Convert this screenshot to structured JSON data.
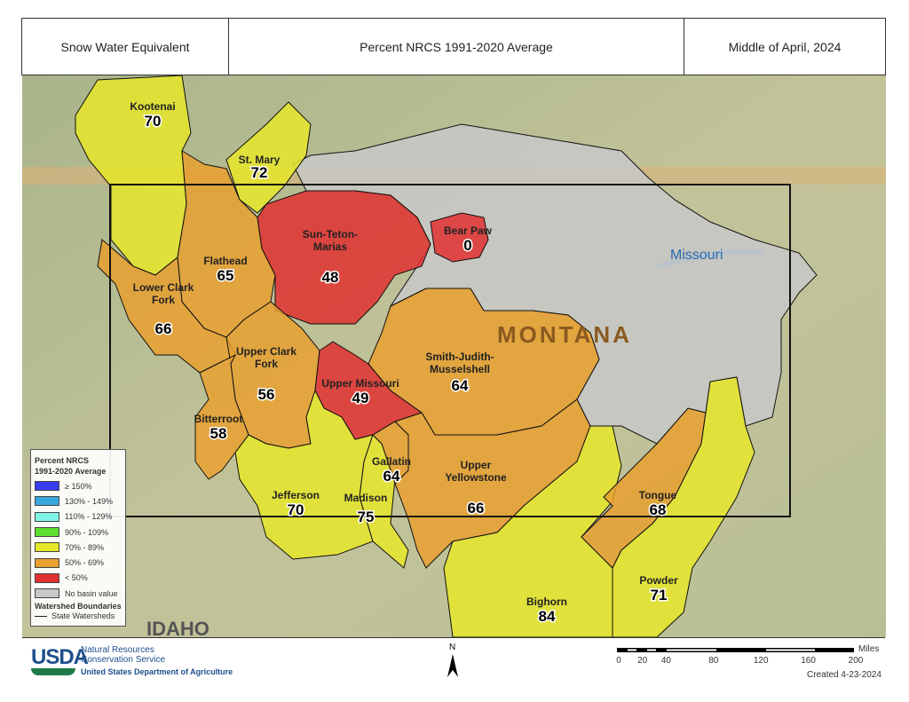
{
  "header": {
    "left": "Snow Water Equivalent",
    "center": "Percent NRCS 1991-2020 Average",
    "right": "Middle of April, 2024"
  },
  "colors": {
    "ge150": "#3b3bf0",
    "c130": "#3aa8e0",
    "c110": "#7ff5e8",
    "c90": "#5ee030",
    "c70": "#e6e62a",
    "c50": "#e8a030",
    "lt50": "#e03030",
    "none": "#c8c8c8"
  },
  "basins": [
    {
      "name": "Kootenai",
      "value": "70",
      "class": "c70"
    },
    {
      "name": "St. Mary",
      "value": "72",
      "class": "c70"
    },
    {
      "name": "Flathead",
      "value": "65",
      "class": "c50"
    },
    {
      "name": "Lower Clark Fork",
      "value": "66",
      "class": "c50"
    },
    {
      "name": "Sun-Teton-Marias",
      "value": "48",
      "class": "lt50"
    },
    {
      "name": "Bear Paw",
      "value": "0",
      "class": "lt50"
    },
    {
      "name": "Upper Clark Fork",
      "value": "56",
      "class": "c50"
    },
    {
      "name": "Bitterroot",
      "value": "58",
      "class": "c50"
    },
    {
      "name": "Upper Missouri",
      "value": "49",
      "class": "lt50"
    },
    {
      "name": "Smith-Judith-Musselshell",
      "value": "64",
      "class": "c50"
    },
    {
      "name": "Jefferson",
      "value": "70",
      "class": "c70"
    },
    {
      "name": "Madison",
      "value": "75",
      "class": "c70"
    },
    {
      "name": "Gallatin",
      "value": "64",
      "class": "c50"
    },
    {
      "name": "Upper Yellowstone",
      "value": "66",
      "class": "c50"
    },
    {
      "name": "Bighorn",
      "value": "84",
      "class": "c70"
    },
    {
      "name": "Tongue",
      "value": "68",
      "class": "c50"
    },
    {
      "name": "Powder",
      "value": "71",
      "class": "c70"
    }
  ],
  "map_labels": {
    "state": "MONTANA",
    "river": "Missouri",
    "idaho": "IDAHO"
  },
  "legend": {
    "title1": "Percent NRCS",
    "title2": "1991-2020 Average",
    "items": [
      "≥ 150%",
      "130% - 149%",
      "110% - 129%",
      "90% - 109%",
      "70% - 89%",
      "50% - 69%",
      "< 50%",
      "No basin value"
    ],
    "boundaries_title": "Watershed Boundaries",
    "boundaries_item": "State Watersheds"
  },
  "footer": {
    "logo": "USDA",
    "agency1": "Natural Resources",
    "agency2": "Conservation Service",
    "dept": "United States Department of Agriculture",
    "north": "N",
    "scale_unit": "Miles",
    "scale_ticks": [
      "0",
      "20",
      "40",
      "80",
      "120",
      "160",
      "200"
    ],
    "created": "Created 4-23-2024"
  }
}
